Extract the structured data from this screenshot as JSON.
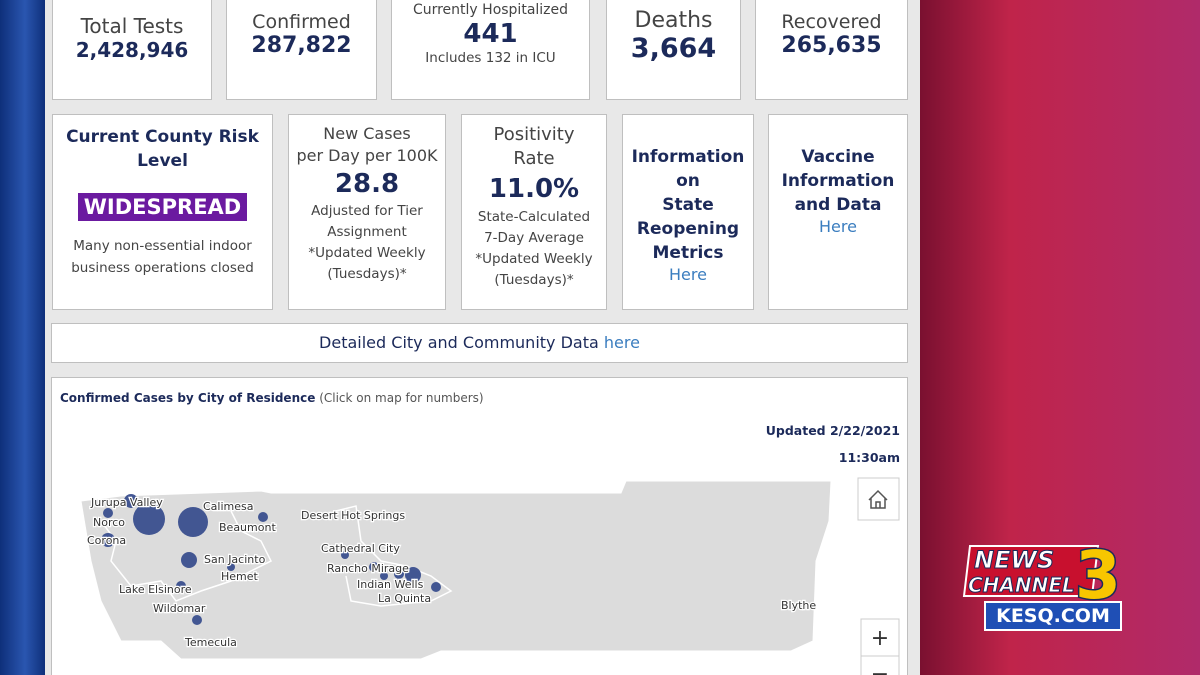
{
  "stats": [
    {
      "label": "Total Tests",
      "value": "2,428,946"
    },
    {
      "label": "Confirmed",
      "value": "287,822"
    },
    {
      "label": "Currently Hospitalized",
      "value": "441",
      "note": "Includes 132 in ICU"
    },
    {
      "label": "Deaths",
      "value": "3,664"
    },
    {
      "label": "Recovered",
      "value": "265,635"
    }
  ],
  "cards": [
    {
      "title": [
        "Current County Risk",
        "Level"
      ],
      "badge": "WIDESPREAD",
      "lines": [
        "Many non-essential indoor",
        "business operations closed"
      ]
    },
    {
      "title": [
        "New Cases",
        "per Day per 100K"
      ],
      "value": "28.8",
      "lines": [
        "Adjusted for Tier",
        "Assignment",
        "*Updated Weekly",
        "(Tuesdays)*"
      ]
    },
    {
      "title": [
        "Positivity",
        "Rate"
      ],
      "value": "11.0%",
      "lines": [
        "State-Calculated",
        "7-Day Average",
        "*Updated Weekly",
        "(Tuesdays)*"
      ]
    },
    {
      "title": [
        "Information",
        "on",
        "State",
        "Reopening",
        "Metrics"
      ],
      "link": "Here"
    },
    {
      "title": [
        "Vaccine",
        "Information",
        "and Data"
      ],
      "link": "Here"
    }
  ],
  "detail": {
    "text": "Detailed City and Community Data",
    "link": "here"
  },
  "map": {
    "title": "Confirmed Cases by City of Residence",
    "subtitle": "(Click on map for numbers)",
    "updated": "Updated 2/22/2021",
    "time": "11:30am",
    "cities": [
      "Jurupa Valley",
      "Norco",
      "Corona",
      "Calimesa",
      "Beaumont",
      "San Jacinto",
      "Hemet",
      "Lake Elsinore",
      "Wildomar",
      "Temecula",
      "Desert Hot Springs",
      "Cathedral City",
      "Rancho Mirage",
      "Indian Wells",
      "La Quinta",
      "Blythe"
    ],
    "zoom_in": "+",
    "zoom_out": "−"
  },
  "logo": {
    "line1": "NEWS",
    "line2": "CHANNEL",
    "number": "3",
    "site": "KESQ.COM"
  }
}
